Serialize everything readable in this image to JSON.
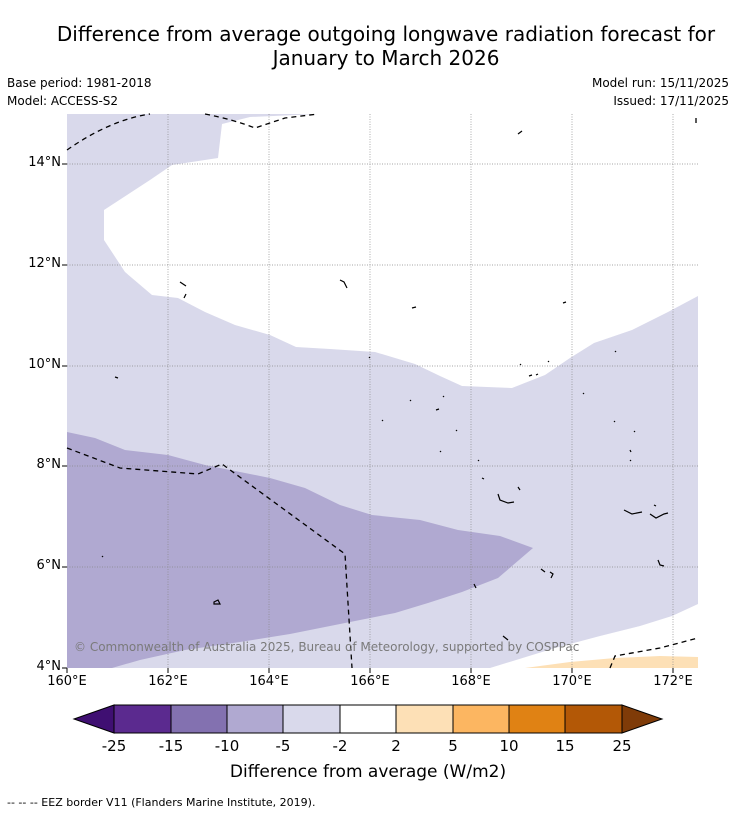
{
  "title_line1": "Difference from average outgoing longwave radiation forecast for",
  "title_line2": "January to March 2026",
  "base_period": "Base period: 1981-2018",
  "model": "Model: ACCESS-S2",
  "model_run": "Model run: 15/11/2025",
  "issued": "Issued: 17/11/2025",
  "copyright": "© Commonwealth of Australia 2025, Bureau of Meteorology, supported by COSPPac",
  "lat_labels": [
    "14°N",
    "12°N",
    "10°N",
    "8°N",
    "6°N",
    "4°N"
  ],
  "lon_labels": [
    "160°E",
    "162°E",
    "164°E",
    "166°E",
    "168°E",
    "170°E",
    "172°E"
  ],
  "colorbar": {
    "ticks": [
      "-25",
      "-15",
      "-10",
      "-5",
      "-2",
      "2",
      "5",
      "10",
      "15",
      "25"
    ],
    "colors": [
      "#3f0f72",
      "#5b2a8f",
      "#8371b0",
      "#b0a9d1",
      "#d9d9eb",
      "#ffffff",
      "#fde0b6",
      "#fcb661",
      "#e08214",
      "#b35806",
      "#7f3b08"
    ],
    "label": "Difference from average (W/m2)"
  },
  "footnote": "--  --  -- EEZ border V11 (Flanders Marine Institute, 2019)."
}
